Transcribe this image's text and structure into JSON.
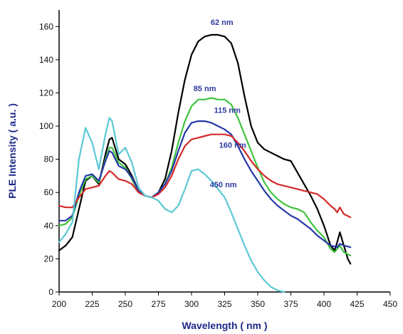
{
  "chart_data": {
    "type": "line",
    "title": "",
    "xlabel": "Wavelength ( nm )",
    "ylabel": "PLE Intensity ( a.u. )",
    "xlim": [
      200,
      450
    ],
    "ylim": [
      0,
      170
    ],
    "x_ticks": [
      200,
      225,
      250,
      275,
      300,
      325,
      350,
      375,
      400,
      425,
      450
    ],
    "y_ticks": [
      0,
      20,
      40,
      60,
      80,
      100,
      120,
      140,
      160
    ],
    "grid": false,
    "legend": "inline labels",
    "series": [
      {
        "name": "62 nm",
        "color": "#000000",
        "label_at": [
          323,
          161
        ],
        "points": [
          [
            200,
            25
          ],
          [
            205,
            28
          ],
          [
            210,
            33
          ],
          [
            215,
            50
          ],
          [
            220,
            67
          ],
          [
            225,
            70
          ],
          [
            230,
            65
          ],
          [
            235,
            83
          ],
          [
            238,
            92
          ],
          [
            240,
            93
          ],
          [
            245,
            80
          ],
          [
            250,
            77
          ],
          [
            255,
            70
          ],
          [
            260,
            61
          ],
          [
            265,
            58
          ],
          [
            270,
            57
          ],
          [
            275,
            60
          ],
          [
            280,
            68
          ],
          [
            285,
            85
          ],
          [
            290,
            108
          ],
          [
            295,
            128
          ],
          [
            300,
            143
          ],
          [
            305,
            151
          ],
          [
            310,
            154
          ],
          [
            315,
            155
          ],
          [
            320,
            155
          ],
          [
            325,
            154
          ],
          [
            330,
            150
          ],
          [
            335,
            138
          ],
          [
            340,
            118
          ],
          [
            345,
            100
          ],
          [
            350,
            90
          ],
          [
            355,
            86
          ],
          [
            360,
            84
          ],
          [
            365,
            82
          ],
          [
            370,
            80
          ],
          [
            375,
            79
          ],
          [
            380,
            72
          ],
          [
            385,
            65
          ],
          [
            390,
            58
          ],
          [
            395,
            50
          ],
          [
            400,
            40
          ],
          [
            405,
            28
          ],
          [
            408,
            25
          ],
          [
            410,
            30
          ],
          [
            412,
            36
          ],
          [
            415,
            28
          ],
          [
            418,
            20
          ],
          [
            420,
            17
          ]
        ]
      },
      {
        "name": "85 nm",
        "color": "#3fc43f",
        "label_at": [
          310,
          121
        ],
        "points": [
          [
            200,
            40
          ],
          [
            205,
            41
          ],
          [
            210,
            45
          ],
          [
            215,
            58
          ],
          [
            220,
            68
          ],
          [
            225,
            70
          ],
          [
            230,
            66
          ],
          [
            235,
            80
          ],
          [
            238,
            87
          ],
          [
            240,
            87
          ],
          [
            245,
            78
          ],
          [
            250,
            75
          ],
          [
            255,
            68
          ],
          [
            260,
            60
          ],
          [
            265,
            58
          ],
          [
            270,
            57
          ],
          [
            275,
            60
          ],
          [
            280,
            65
          ],
          [
            285,
            75
          ],
          [
            290,
            90
          ],
          [
            295,
            103
          ],
          [
            300,
            112
          ],
          [
            305,
            116
          ],
          [
            310,
            116
          ],
          [
            315,
            117
          ],
          [
            320,
            116
          ],
          [
            325,
            116
          ],
          [
            330,
            113
          ],
          [
            335,
            105
          ],
          [
            340,
            95
          ],
          [
            345,
            85
          ],
          [
            350,
            75
          ],
          [
            355,
            66
          ],
          [
            360,
            60
          ],
          [
            365,
            56
          ],
          [
            370,
            53
          ],
          [
            375,
            51
          ],
          [
            380,
            50
          ],
          [
            385,
            48
          ],
          [
            390,
            42
          ],
          [
            395,
            37
          ],
          [
            400,
            33
          ],
          [
            405,
            26
          ],
          [
            408,
            24
          ],
          [
            410,
            26
          ],
          [
            412,
            28
          ],
          [
            415,
            24
          ],
          [
            420,
            22
          ]
        ]
      },
      {
        "name": "115 nm",
        "color": "#2638a8",
        "label_at": [
          327,
          108
        ],
        "points": [
          [
            200,
            43
          ],
          [
            205,
            43
          ],
          [
            210,
            46
          ],
          [
            215,
            60
          ],
          [
            220,
            70
          ],
          [
            225,
            71
          ],
          [
            230,
            67
          ],
          [
            235,
            79
          ],
          [
            238,
            85
          ],
          [
            240,
            84
          ],
          [
            245,
            76
          ],
          [
            250,
            74
          ],
          [
            255,
            69
          ],
          [
            260,
            61
          ],
          [
            265,
            58
          ],
          [
            270,
            57
          ],
          [
            275,
            60
          ],
          [
            280,
            65
          ],
          [
            285,
            73
          ],
          [
            290,
            85
          ],
          [
            295,
            96
          ],
          [
            300,
            102
          ],
          [
            305,
            103
          ],
          [
            310,
            103
          ],
          [
            315,
            102
          ],
          [
            320,
            100
          ],
          [
            325,
            98
          ],
          [
            330,
            95
          ],
          [
            335,
            88
          ],
          [
            340,
            80
          ],
          [
            345,
            73
          ],
          [
            350,
            67
          ],
          [
            355,
            61
          ],
          [
            360,
            56
          ],
          [
            365,
            52
          ],
          [
            370,
            49
          ],
          [
            375,
            46
          ],
          [
            380,
            44
          ],
          [
            385,
            41
          ],
          [
            390,
            38
          ],
          [
            395,
            34
          ],
          [
            400,
            31
          ],
          [
            405,
            28
          ],
          [
            410,
            27
          ],
          [
            412,
            29
          ],
          [
            415,
            28
          ],
          [
            420,
            27
          ]
        ]
      },
      {
        "name": "160 nm",
        "color": "#d42a2a",
        "label_at": [
          331,
          87
        ],
        "points": [
          [
            200,
            52
          ],
          [
            205,
            51
          ],
          [
            210,
            51
          ],
          [
            215,
            57
          ],
          [
            220,
            62
          ],
          [
            225,
            63
          ],
          [
            230,
            64
          ],
          [
            235,
            70
          ],
          [
            238,
            73
          ],
          [
            240,
            72
          ],
          [
            245,
            68
          ],
          [
            250,
            67
          ],
          [
            255,
            65
          ],
          [
            260,
            60
          ],
          [
            265,
            58
          ],
          [
            270,
            57
          ],
          [
            275,
            59
          ],
          [
            280,
            63
          ],
          [
            285,
            70
          ],
          [
            290,
            80
          ],
          [
            295,
            88
          ],
          [
            300,
            92
          ],
          [
            305,
            93
          ],
          [
            310,
            94
          ],
          [
            315,
            95
          ],
          [
            320,
            95
          ],
          [
            325,
            95
          ],
          [
            330,
            94
          ],
          [
            335,
            90
          ],
          [
            340,
            85
          ],
          [
            345,
            79
          ],
          [
            350,
            74
          ],
          [
            355,
            70
          ],
          [
            360,
            67
          ],
          [
            365,
            65
          ],
          [
            370,
            64
          ],
          [
            375,
            63
          ],
          [
            380,
            62
          ],
          [
            385,
            61
          ],
          [
            390,
            60
          ],
          [
            395,
            59
          ],
          [
            400,
            56
          ],
          [
            405,
            52
          ],
          [
            408,
            50
          ],
          [
            410,
            48
          ],
          [
            412,
            51
          ],
          [
            415,
            47
          ],
          [
            420,
            45
          ]
        ]
      },
      {
        "name": "450 nm",
        "color": "#5cc8d4",
        "label_at": [
          324,
          63
        ],
        "points": [
          [
            200,
            30
          ],
          [
            205,
            35
          ],
          [
            210,
            42
          ],
          [
            215,
            80
          ],
          [
            220,
            99
          ],
          [
            225,
            90
          ],
          [
            230,
            74
          ],
          [
            235,
            95
          ],
          [
            238,
            105
          ],
          [
            240,
            103
          ],
          [
            245,
            83
          ],
          [
            250,
            87
          ],
          [
            255,
            78
          ],
          [
            260,
            63
          ],
          [
            265,
            58
          ],
          [
            270,
            57
          ],
          [
            275,
            55
          ],
          [
            280,
            50
          ],
          [
            285,
            48
          ],
          [
            290,
            52
          ],
          [
            295,
            62
          ],
          [
            300,
            73
          ],
          [
            305,
            74
          ],
          [
            310,
            71
          ],
          [
            315,
            67
          ],
          [
            320,
            62
          ],
          [
            325,
            57
          ],
          [
            330,
            48
          ],
          [
            335,
            38
          ],
          [
            340,
            28
          ],
          [
            345,
            19
          ],
          [
            350,
            12
          ],
          [
            355,
            7
          ],
          [
            360,
            3
          ],
          [
            365,
            1
          ],
          [
            370,
            0
          ]
        ]
      }
    ]
  }
}
